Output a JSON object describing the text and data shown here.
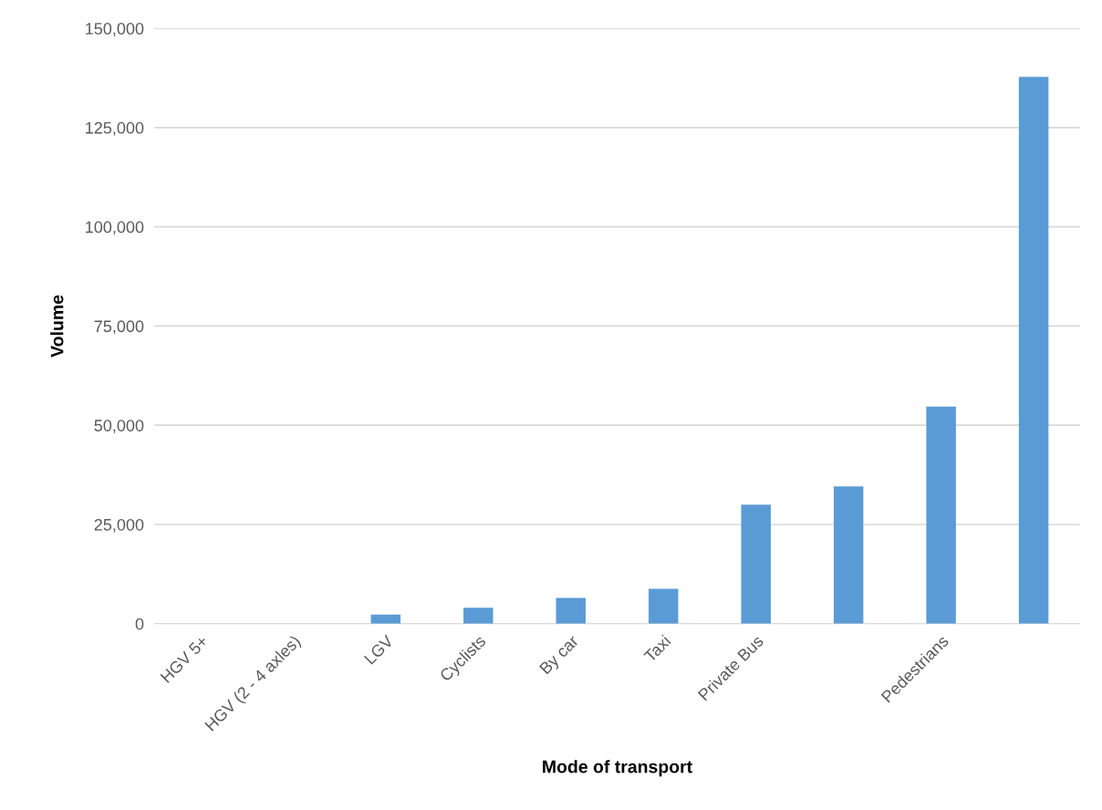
{
  "chart_data": {
    "type": "bar",
    "xlabel": "Mode of transport",
    "ylabel": "Volume",
    "categories": [
      "HGV 5+",
      "HGV (2 - 4 axles)",
      "LGV",
      "Cyclists",
      "By car",
      "Taxi",
      "Private Bus",
      null,
      "Pedestrians",
      null
    ],
    "values": [
      0,
      0,
      2300,
      4000,
      6500,
      8800,
      30000,
      34600,
      54700,
      137800
    ],
    "color": "#5b9bd5",
    "ylim": [
      0,
      150000
    ],
    "yticks": [
      {
        "value": 0,
        "label": "0"
      },
      {
        "value": 25000,
        "label": "25,000"
      },
      {
        "value": 50000,
        "label": "50,000"
      },
      {
        "value": 75000,
        "label": "75,000"
      },
      {
        "value": 100000,
        "label": "100,000"
      },
      {
        "value": 125000,
        "label": "125,000"
      },
      {
        "value": 150000,
        "label": "150,000"
      }
    ],
    "grid": "y"
  }
}
